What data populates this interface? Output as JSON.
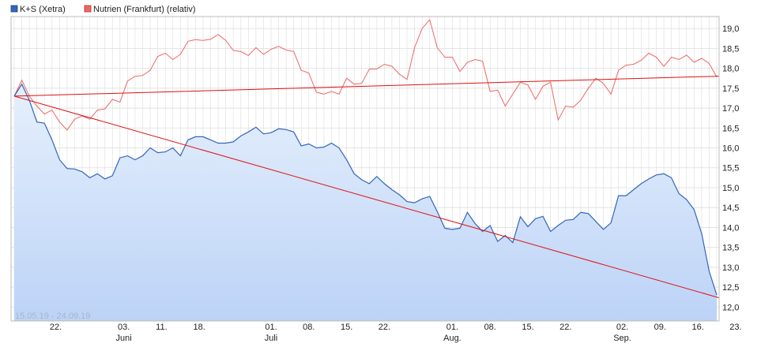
{
  "chart_data": {
    "type": "line",
    "date_range": "15.05.19 - 24.09.19",
    "y_ticks": [
      "19,0",
      "18,5",
      "18,0",
      "17,5",
      "17,0",
      "16,5",
      "16,0",
      "15,5",
      "15,0",
      "14,5",
      "14,0",
      "13,5",
      "13,0",
      "12,5",
      "12,0"
    ],
    "ylim": [
      11.65,
      19.3
    ],
    "x_day_labels": [
      "22.",
      "03.",
      "11.",
      "18.",
      "01.",
      "08.",
      "15.",
      "22.",
      "01.",
      "08.",
      "15.",
      "22.",
      "02.",
      "09.",
      "16.",
      "23."
    ],
    "x_month_labels": [
      "Juni",
      "Juli",
      "Aug.",
      "Sep."
    ],
    "grid": true,
    "legend_placement": "top-left",
    "colors": {
      "kps": "#3366bb",
      "kps_fill_top": "#e6f0fc",
      "kps_fill_bottom": "#bcd3f7",
      "nutrien": "#ee6666",
      "trend": "#dd1111",
      "grid": "#dddddd"
    },
    "series": [
      {
        "name": "K+S (Xetra)",
        "values": [
          17.3,
          17.6,
          17.2,
          16.65,
          16.62,
          16.2,
          15.7,
          15.48,
          15.47,
          15.4,
          15.25,
          15.35,
          15.22,
          15.3,
          15.75,
          15.8,
          15.7,
          15.8,
          16.0,
          15.88,
          15.9,
          16.0,
          15.8,
          16.2,
          16.28,
          16.28,
          16.2,
          16.12,
          16.12,
          16.15,
          16.3,
          16.4,
          16.52,
          16.35,
          16.38,
          16.48,
          16.46,
          16.4,
          16.05,
          16.1,
          16.0,
          16.02,
          16.12,
          16.0,
          15.7,
          15.35,
          15.2,
          15.1,
          15.28,
          15.1,
          14.95,
          14.82,
          14.65,
          14.62,
          14.72,
          14.78,
          14.4,
          13.98,
          13.95,
          13.98,
          14.38,
          14.1,
          13.9,
          14.05,
          13.65,
          13.8,
          13.62,
          14.27,
          14.02,
          14.22,
          14.28,
          13.9,
          14.05,
          14.18,
          14.2,
          14.38,
          14.35,
          14.15,
          13.95,
          14.12,
          14.8,
          14.8,
          14.95,
          15.1,
          15.22,
          15.32,
          15.35,
          15.25,
          14.85,
          14.7,
          14.45,
          13.85,
          12.9,
          12.3
        ]
      },
      {
        "name": "Nutrien (Frankfurt) (relativ)",
        "values": [
          17.3,
          17.7,
          17.3,
          17.05,
          16.85,
          16.95,
          16.65,
          16.45,
          16.72,
          16.8,
          16.72,
          16.95,
          16.98,
          17.22,
          17.15,
          17.68,
          17.8,
          17.82,
          17.95,
          18.3,
          18.38,
          18.22,
          18.35,
          18.68,
          18.72,
          18.7,
          18.73,
          18.85,
          18.7,
          18.45,
          18.42,
          18.32,
          18.52,
          18.35,
          18.48,
          18.55,
          18.46,
          18.42,
          17.95,
          17.88,
          17.4,
          17.35,
          17.42,
          17.35,
          17.75,
          17.6,
          17.62,
          17.98,
          17.98,
          18.1,
          18.05,
          17.85,
          17.72,
          18.52,
          19.0,
          19.22,
          18.52,
          18.28,
          18.28,
          17.92,
          18.15,
          18.22,
          18.18,
          17.42,
          17.45,
          17.05,
          17.35,
          17.65,
          17.58,
          17.22,
          17.55,
          17.65,
          16.7,
          17.05,
          17.02,
          17.2,
          17.5,
          17.75,
          17.62,
          17.35,
          17.95,
          18.08,
          18.1,
          18.2,
          18.38,
          18.28,
          18.05,
          18.28,
          18.22,
          18.33,
          18.15,
          18.25,
          18.12,
          17.78
        ]
      }
    ],
    "trendlines": [
      {
        "from": [
          0,
          17.3
        ],
        "to": [
          93,
          12.25
        ]
      },
      {
        "from": [
          0,
          17.3
        ],
        "to": [
          93,
          17.8
        ]
      }
    ],
    "x_day_label_positions": [
      5.5,
      14.5,
      19.5,
      24.5,
      34.0,
      39.0,
      44.0,
      49.0,
      58.0,
      63.0,
      68.0,
      73.0,
      80.5,
      85.5,
      90.5,
      95.5
    ],
    "x_month_label_positions": [
      14.5,
      34.0,
      58.0,
      80.5
    ]
  }
}
